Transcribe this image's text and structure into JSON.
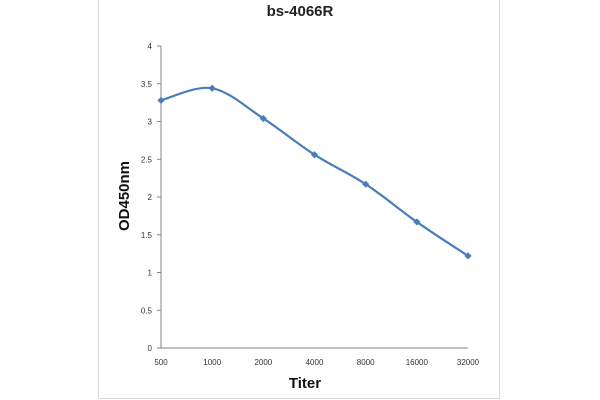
{
  "chart_data": {
    "type": "line",
    "title": "bs-4066R",
    "xlabel": "Titer",
    "ylabel": "OD450nm",
    "categories": [
      "500",
      "1000",
      "2000",
      "4000",
      "8000",
      "16000",
      "32000"
    ],
    "series": [
      {
        "values": [
          3.28,
          3.44,
          3.04,
          2.56,
          2.17,
          1.67,
          1.22
        ]
      }
    ],
    "ylim": [
      0,
      4
    ],
    "yticks": [
      "0",
      "0.5",
      "1",
      "1.5",
      "2",
      "2.5",
      "3",
      "3.5",
      "4"
    ],
    "grid": false,
    "legend": "none",
    "colors": {
      "line": "#4a7ebb",
      "marker": "#4a7ebb",
      "axis": "#868686"
    }
  }
}
